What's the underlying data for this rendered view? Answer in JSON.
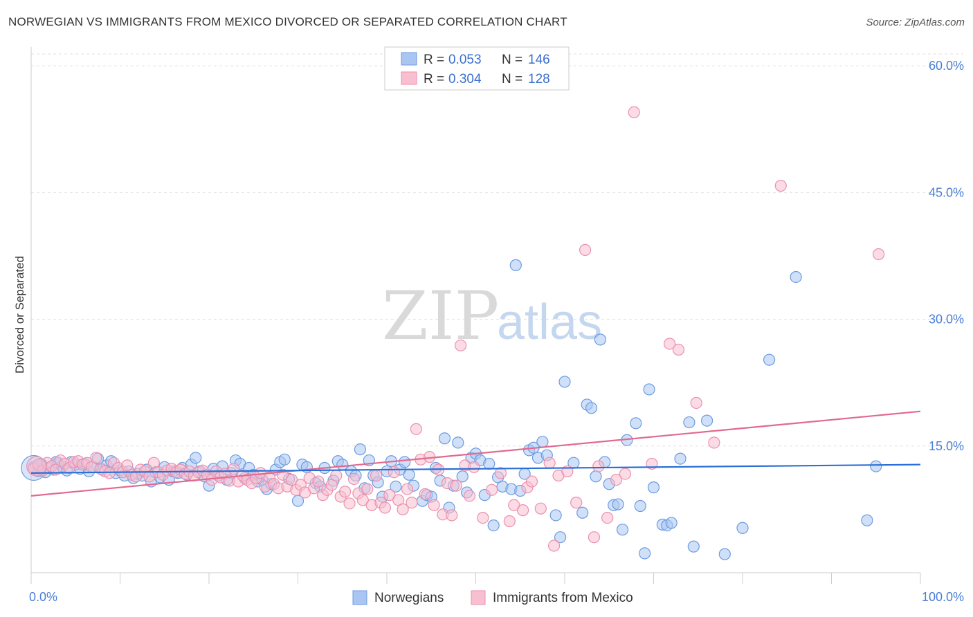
{
  "header": {
    "title": "NORWEGIAN VS IMMIGRANTS FROM MEXICO DIVORCED OR SEPARATED CORRELATION CHART",
    "source": "Source: ZipAtlas.com"
  },
  "watermark": {
    "zip": "ZIP",
    "atlas": "atlas"
  },
  "legend_box": {
    "rows": [
      {
        "r_label": "R =",
        "r_value": "0.053",
        "n_label": "N =",
        "n_value": "146"
      },
      {
        "r_label": "R =",
        "r_value": "0.304",
        "n_label": "N =",
        "n_value": "128"
      }
    ]
  },
  "chart_data": {
    "type": "scatter",
    "title": "NORWEGIAN VS IMMIGRANTS FROM MEXICO DIVORCED OR SEPARATED CORRELATION CHART",
    "xlabel": "",
    "ylabel": "Divorced or Separated",
    "xlim": [
      0,
      100
    ],
    "ylim": [
      0,
      63
    ],
    "x_tick_labels": [
      "0.0%",
      "100.0%"
    ],
    "y_ticks": [
      15,
      30,
      45,
      60
    ],
    "y_tick_labels": [
      "15.0%",
      "30.0%",
      "45.0%",
      "60.0%"
    ],
    "grid": true,
    "legend_position": "top-center",
    "colors": {
      "blue_fill": "#a9c6f2",
      "blue_stroke": "#6c9be0",
      "blue_line": "#2a6fd6",
      "pink_fill": "#f7bfd0",
      "pink_stroke": "#ec8fae",
      "pink_line": "#e2698f"
    },
    "series": [
      {
        "name": "Norwegians",
        "r": 0.053,
        "n": 146,
        "trend": {
          "x": [
            0,
            100
          ],
          "y": [
            11.8,
            12.8
          ]
        },
        "points": [
          [
            0.3,
            12.5
          ],
          [
            0.8,
            12.0
          ],
          [
            1.2,
            12.8
          ],
          [
            1.6,
            11.9
          ],
          [
            2.0,
            12.4
          ],
          [
            2.5,
            12.2
          ],
          [
            3.0,
            13.0
          ],
          [
            3.5,
            12.6
          ],
          [
            4.0,
            12.1
          ],
          [
            4.5,
            13.1
          ],
          [
            5.0,
            12.8
          ],
          [
            5.5,
            12.3
          ],
          [
            6.0,
            12.9
          ],
          [
            6.5,
            12.0
          ],
          [
            7.0,
            12.5
          ],
          [
            7.5,
            13.5
          ],
          [
            8.0,
            12.2
          ],
          [
            8.5,
            12.7
          ],
          [
            9.0,
            13.2
          ],
          [
            9.5,
            11.8
          ],
          [
            10.0,
            12.1
          ],
          [
            10.5,
            11.5
          ],
          [
            11.0,
            12.0
          ],
          [
            11.5,
            11.2
          ],
          [
            12.0,
            11.7
          ],
          [
            12.5,
            11.5
          ],
          [
            13.0,
            12.2
          ],
          [
            13.5,
            10.8
          ],
          [
            14.0,
            11.9
          ],
          [
            14.5,
            11.3
          ],
          [
            15.0,
            12.5
          ],
          [
            15.5,
            11.0
          ],
          [
            16.0,
            12.0
          ],
          [
            16.5,
            11.8
          ],
          [
            17.0,
            12.4
          ],
          [
            17.5,
            11.6
          ],
          [
            18.0,
            12.8
          ],
          [
            18.5,
            13.6
          ],
          [
            19.0,
            12.0
          ],
          [
            19.5,
            11.4
          ],
          [
            20.0,
            10.3
          ],
          [
            20.5,
            12.3
          ],
          [
            21.0,
            11.5
          ],
          [
            21.5,
            12.6
          ],
          [
            22.0,
            11.0
          ],
          [
            22.5,
            11.8
          ],
          [
            23.0,
            13.3
          ],
          [
            23.5,
            12.9
          ],
          [
            24.0,
            11.2
          ],
          [
            24.5,
            12.4
          ],
          [
            25.0,
            11.6
          ],
          [
            25.5,
            10.8
          ],
          [
            26.0,
            11.0
          ],
          [
            26.5,
            9.9
          ],
          [
            27.0,
            10.5
          ],
          [
            27.5,
            12.2
          ],
          [
            28.0,
            13.1
          ],
          [
            28.5,
            13.4
          ],
          [
            29.0,
            11.1
          ],
          [
            30.0,
            8.5
          ],
          [
            30.5,
            12.8
          ],
          [
            31.0,
            12.5
          ],
          [
            32.0,
            10.6
          ],
          [
            32.5,
            10.2
          ],
          [
            33.0,
            12.4
          ],
          [
            34.0,
            10.9
          ],
          [
            34.5,
            13.2
          ],
          [
            35.0,
            12.8
          ],
          [
            36.0,
            12.0
          ],
          [
            36.5,
            11.5
          ],
          [
            37.0,
            14.6
          ],
          [
            37.5,
            10.0
          ],
          [
            38.0,
            13.3
          ],
          [
            38.5,
            11.5
          ],
          [
            39.0,
            10.7
          ],
          [
            39.5,
            9.0
          ],
          [
            40.0,
            12.0
          ],
          [
            40.5,
            13.2
          ],
          [
            41.0,
            10.2
          ],
          [
            41.5,
            12.2
          ],
          [
            42.0,
            13.1
          ],
          [
            42.5,
            11.6
          ],
          [
            43.0,
            10.3
          ],
          [
            44.0,
            8.5
          ],
          [
            44.5,
            9.2
          ],
          [
            45.0,
            9.0
          ],
          [
            45.5,
            12.4
          ],
          [
            46.0,
            10.9
          ],
          [
            46.5,
            15.9
          ],
          [
            47.0,
            7.7
          ],
          [
            47.5,
            10.3
          ],
          [
            48.0,
            15.4
          ],
          [
            48.5,
            11.4
          ],
          [
            49.0,
            9.5
          ],
          [
            49.5,
            13.6
          ],
          [
            50.0,
            14.1
          ],
          [
            50.5,
            13.3
          ],
          [
            51.0,
            9.2
          ],
          [
            51.5,
            12.9
          ],
          [
            52.0,
            5.6
          ],
          [
            52.5,
            11.3
          ],
          [
            53.0,
            10.2
          ],
          [
            54.0,
            9.9
          ],
          [
            54.5,
            36.4
          ],
          [
            55.0,
            9.7
          ],
          [
            55.5,
            11.7
          ],
          [
            56.0,
            14.5
          ],
          [
            56.5,
            14.8
          ],
          [
            57.0,
            13.6
          ],
          [
            57.5,
            15.5
          ],
          [
            58.0,
            13.9
          ],
          [
            59.0,
            6.8
          ],
          [
            59.5,
            4.2
          ],
          [
            60.0,
            22.6
          ],
          [
            61.0,
            13.0
          ],
          [
            62.0,
            7.1
          ],
          [
            62.5,
            19.9
          ],
          [
            63.0,
            19.5
          ],
          [
            63.5,
            11.4
          ],
          [
            64.0,
            27.6
          ],
          [
            64.5,
            13.1
          ],
          [
            65.0,
            10.5
          ],
          [
            65.5,
            8.0
          ],
          [
            66.0,
            8.1
          ],
          [
            66.5,
            5.1
          ],
          [
            67.0,
            15.7
          ],
          [
            68.0,
            17.7
          ],
          [
            68.5,
            7.9
          ],
          [
            69.0,
            2.3
          ],
          [
            69.5,
            21.7
          ],
          [
            70.0,
            10.1
          ],
          [
            71.0,
            5.7
          ],
          [
            71.5,
            5.6
          ],
          [
            72.0,
            5.9
          ],
          [
            73.0,
            13.5
          ],
          [
            74.0,
            17.8
          ],
          [
            74.5,
            3.1
          ],
          [
            76.0,
            18.0
          ],
          [
            78.0,
            2.2
          ],
          [
            80.0,
            5.3
          ],
          [
            83.0,
            25.2
          ],
          [
            86.0,
            35.0
          ],
          [
            94.0,
            6.2
          ],
          [
            95.0,
            12.6
          ],
          [
            1.0,
            12.9
          ],
          [
            2.8,
            13.1
          ]
        ]
      },
      {
        "name": "Immigrants from Mexico",
        "r": 0.304,
        "n": 128,
        "trend": {
          "x": [
            0,
            100
          ],
          "y": [
            9.1,
            19.1
          ]
        },
        "points": [
          [
            0.3,
            12.3
          ],
          [
            0.8,
            12.8
          ],
          [
            1.3,
            12.1
          ],
          [
            1.8,
            13.0
          ],
          [
            2.3,
            12.6
          ],
          [
            2.8,
            12.2
          ],
          [
            3.3,
            13.3
          ],
          [
            3.8,
            12.9
          ],
          [
            4.3,
            12.4
          ],
          [
            4.8,
            13.1
          ],
          [
            5.3,
            13.2
          ],
          [
            5.8,
            12.8
          ],
          [
            6.3,
            13.0
          ],
          [
            6.8,
            12.5
          ],
          [
            7.3,
            13.6
          ],
          [
            7.8,
            12.3
          ],
          [
            8.3,
            12.0
          ],
          [
            8.8,
            11.8
          ],
          [
            9.3,
            13.0
          ],
          [
            9.8,
            12.4
          ],
          [
            10.3,
            11.9
          ],
          [
            10.8,
            12.7
          ],
          [
            11.3,
            11.6
          ],
          [
            11.8,
            11.4
          ],
          [
            12.3,
            12.2
          ],
          [
            12.8,
            12.0
          ],
          [
            13.3,
            11.4
          ],
          [
            13.8,
            13.0
          ],
          [
            14.3,
            11.9
          ],
          [
            14.8,
            11.6
          ],
          [
            15.3,
            12.1
          ],
          [
            15.8,
            12.3
          ],
          [
            16.3,
            11.9
          ],
          [
            16.8,
            12.2
          ],
          [
            17.3,
            11.7
          ],
          [
            17.8,
            12.0
          ],
          [
            18.3,
            11.5
          ],
          [
            18.8,
            11.9
          ],
          [
            19.3,
            12.1
          ],
          [
            19.8,
            11.6
          ],
          [
            20.3,
            11.0
          ],
          [
            20.8,
            12.0
          ],
          [
            21.3,
            11.3
          ],
          [
            21.8,
            11.7
          ],
          [
            22.3,
            10.9
          ],
          [
            22.8,
            12.3
          ],
          [
            23.3,
            10.8
          ],
          [
            23.8,
            11.5
          ],
          [
            24.3,
            11.0
          ],
          [
            24.8,
            10.6
          ],
          [
            25.3,
            11.2
          ],
          [
            25.8,
            11.8
          ],
          [
            26.3,
            10.2
          ],
          [
            26.8,
            11.3
          ],
          [
            27.3,
            10.5
          ],
          [
            27.8,
            10.0
          ],
          [
            28.3,
            11.6
          ],
          [
            28.8,
            10.2
          ],
          [
            29.3,
            11.0
          ],
          [
            29.8,
            9.8
          ],
          [
            30.3,
            10.4
          ],
          [
            30.8,
            9.5
          ],
          [
            31.3,
            11.2
          ],
          [
            31.8,
            10.0
          ],
          [
            32.3,
            10.8
          ],
          [
            32.8,
            9.2
          ],
          [
            33.3,
            9.8
          ],
          [
            33.8,
            10.4
          ],
          [
            34.3,
            11.5
          ],
          [
            34.8,
            9.0
          ],
          [
            35.3,
            9.6
          ],
          [
            35.8,
            8.2
          ],
          [
            36.3,
            11.1
          ],
          [
            36.8,
            9.4
          ],
          [
            37.3,
            8.6
          ],
          [
            37.8,
            9.9
          ],
          [
            38.3,
            8.0
          ],
          [
            38.8,
            11.5
          ],
          [
            39.3,
            8.3
          ],
          [
            39.8,
            7.7
          ],
          [
            40.3,
            9.2
          ],
          [
            40.8,
            11.9
          ],
          [
            41.3,
            8.6
          ],
          [
            41.8,
            7.5
          ],
          [
            42.3,
            9.9
          ],
          [
            42.8,
            8.3
          ],
          [
            43.3,
            17.0
          ],
          [
            43.8,
            13.4
          ],
          [
            44.3,
            9.3
          ],
          [
            44.8,
            13.7
          ],
          [
            45.3,
            8.0
          ],
          [
            45.8,
            12.2
          ],
          [
            46.3,
            6.9
          ],
          [
            46.8,
            10.6
          ],
          [
            47.3,
            6.8
          ],
          [
            47.8,
            10.3
          ],
          [
            48.3,
            26.9
          ],
          [
            48.8,
            12.7
          ],
          [
            49.3,
            9.1
          ],
          [
            49.8,
            12.5
          ],
          [
            50.8,
            6.5
          ],
          [
            51.8,
            9.8
          ],
          [
            52.8,
            11.8
          ],
          [
            53.8,
            6.1
          ],
          [
            54.3,
            8.0
          ],
          [
            55.3,
            7.4
          ],
          [
            55.8,
            10.1
          ],
          [
            56.3,
            10.8
          ],
          [
            57.3,
            7.6
          ],
          [
            58.3,
            13.0
          ],
          [
            58.8,
            3.2
          ],
          [
            59.3,
            11.5
          ],
          [
            60.3,
            12.0
          ],
          [
            61.3,
            8.3
          ],
          [
            62.3,
            38.2
          ],
          [
            63.3,
            4.2
          ],
          [
            63.8,
            12.6
          ],
          [
            64.8,
            6.5
          ],
          [
            65.8,
            11.0
          ],
          [
            67.8,
            54.5
          ],
          [
            71.8,
            27.1
          ],
          [
            72.8,
            26.4
          ],
          [
            74.8,
            20.1
          ],
          [
            76.8,
            15.4
          ],
          [
            84.3,
            45.8
          ],
          [
            95.3,
            37.7
          ],
          [
            66.8,
            11.7
          ],
          [
            69.8,
            12.9
          ]
        ]
      }
    ]
  }
}
